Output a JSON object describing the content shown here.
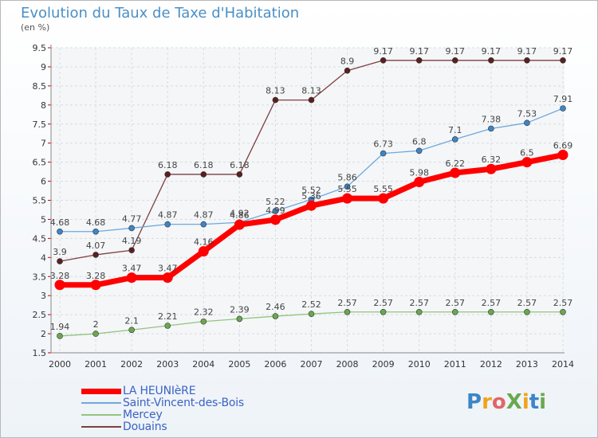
{
  "header": {
    "title": "Evolution du Taux de Taxe d'Habitation",
    "subtitle": "(en %)"
  },
  "brand": {
    "text": "ProXiti"
  },
  "chart_data": {
    "type": "line",
    "title": "Evolution du Taux de Taxe d'Habitation",
    "ylabel": "(en %)",
    "xlabel": "",
    "x": [
      2000,
      2001,
      2002,
      2003,
      2004,
      2005,
      2006,
      2007,
      2008,
      2009,
      2010,
      2011,
      2012,
      2013,
      2014
    ],
    "ylim": [
      1.5,
      9.5
    ],
    "yticks": [
      "1.5",
      "2",
      "2.5",
      "3",
      "3.5",
      "4",
      "4.5",
      "5",
      "5.5",
      "6",
      "6.5",
      "7",
      "7.5",
      "8",
      "8.5",
      "9",
      "9.5"
    ],
    "grid": true,
    "legend_position": "bottom-left",
    "series": [
      {
        "name": "LA HEUNIèRE",
        "color": "#ff0000",
        "marker": "#ff0000",
        "values": [
          3.28,
          3.28,
          3.47,
          3.47,
          4.16,
          4.86,
          4.99,
          5.36,
          5.55,
          5.55,
          5.98,
          6.22,
          6.32,
          6.5,
          6.69
        ],
        "labels": [
          "3.28",
          "3.28",
          "3.47",
          "3.47",
          "4.16",
          "4.86",
          "4.99",
          "5.36",
          "5.55",
          "5.55",
          "5.98",
          "6.22",
          "6.32",
          "6.5",
          "6.69"
        ]
      },
      {
        "name": "Saint-Vincent-des-Bois",
        "color": "#6fa8dc",
        "marker": "#3d85c6",
        "values": [
          4.68,
          4.68,
          4.77,
          4.87,
          4.87,
          4.92,
          5.22,
          5.52,
          5.86,
          6.73,
          6.8,
          7.1,
          7.38,
          7.53,
          7.91
        ],
        "labels": [
          "4.68",
          "4.68",
          "4.77",
          "4.87",
          "4.87",
          "4.92",
          "5.22",
          "5.52",
          "5.86",
          "6.73",
          "6.8",
          "7.1",
          "7.38",
          "7.53",
          "7.91"
        ]
      },
      {
        "name": "Mercey",
        "color": "#93c47d",
        "marker": "#6aa84f",
        "values": [
          1.94,
          2,
          2.1,
          2.21,
          2.32,
          2.39,
          2.46,
          2.52,
          2.57,
          2.57,
          2.57,
          2.57,
          2.57,
          2.57,
          2.57
        ],
        "labels": [
          "1.94",
          "2",
          "2.1",
          "2.21",
          "2.32",
          "2.39",
          "2.46",
          "2.52",
          "2.57",
          "2.57",
          "2.57",
          "2.57",
          "2.57",
          "2.57",
          "2.57"
        ]
      },
      {
        "name": "Douains",
        "color": "#7f3f3f",
        "marker": "#5b1f1f",
        "values": [
          3.9,
          4.07,
          4.19,
          6.18,
          6.18,
          6.18,
          8.13,
          8.13,
          8.9,
          9.17,
          9.17,
          9.17,
          9.17,
          9.17,
          9.17
        ],
        "labels": [
          "3.9",
          "4.07",
          "4.19",
          "6.18",
          "6.18",
          "6.18",
          "8.13",
          "8.13",
          "8.9",
          "9.17",
          "9.17",
          "9.17",
          "9.17",
          "9.17",
          "9.17"
        ]
      }
    ]
  }
}
